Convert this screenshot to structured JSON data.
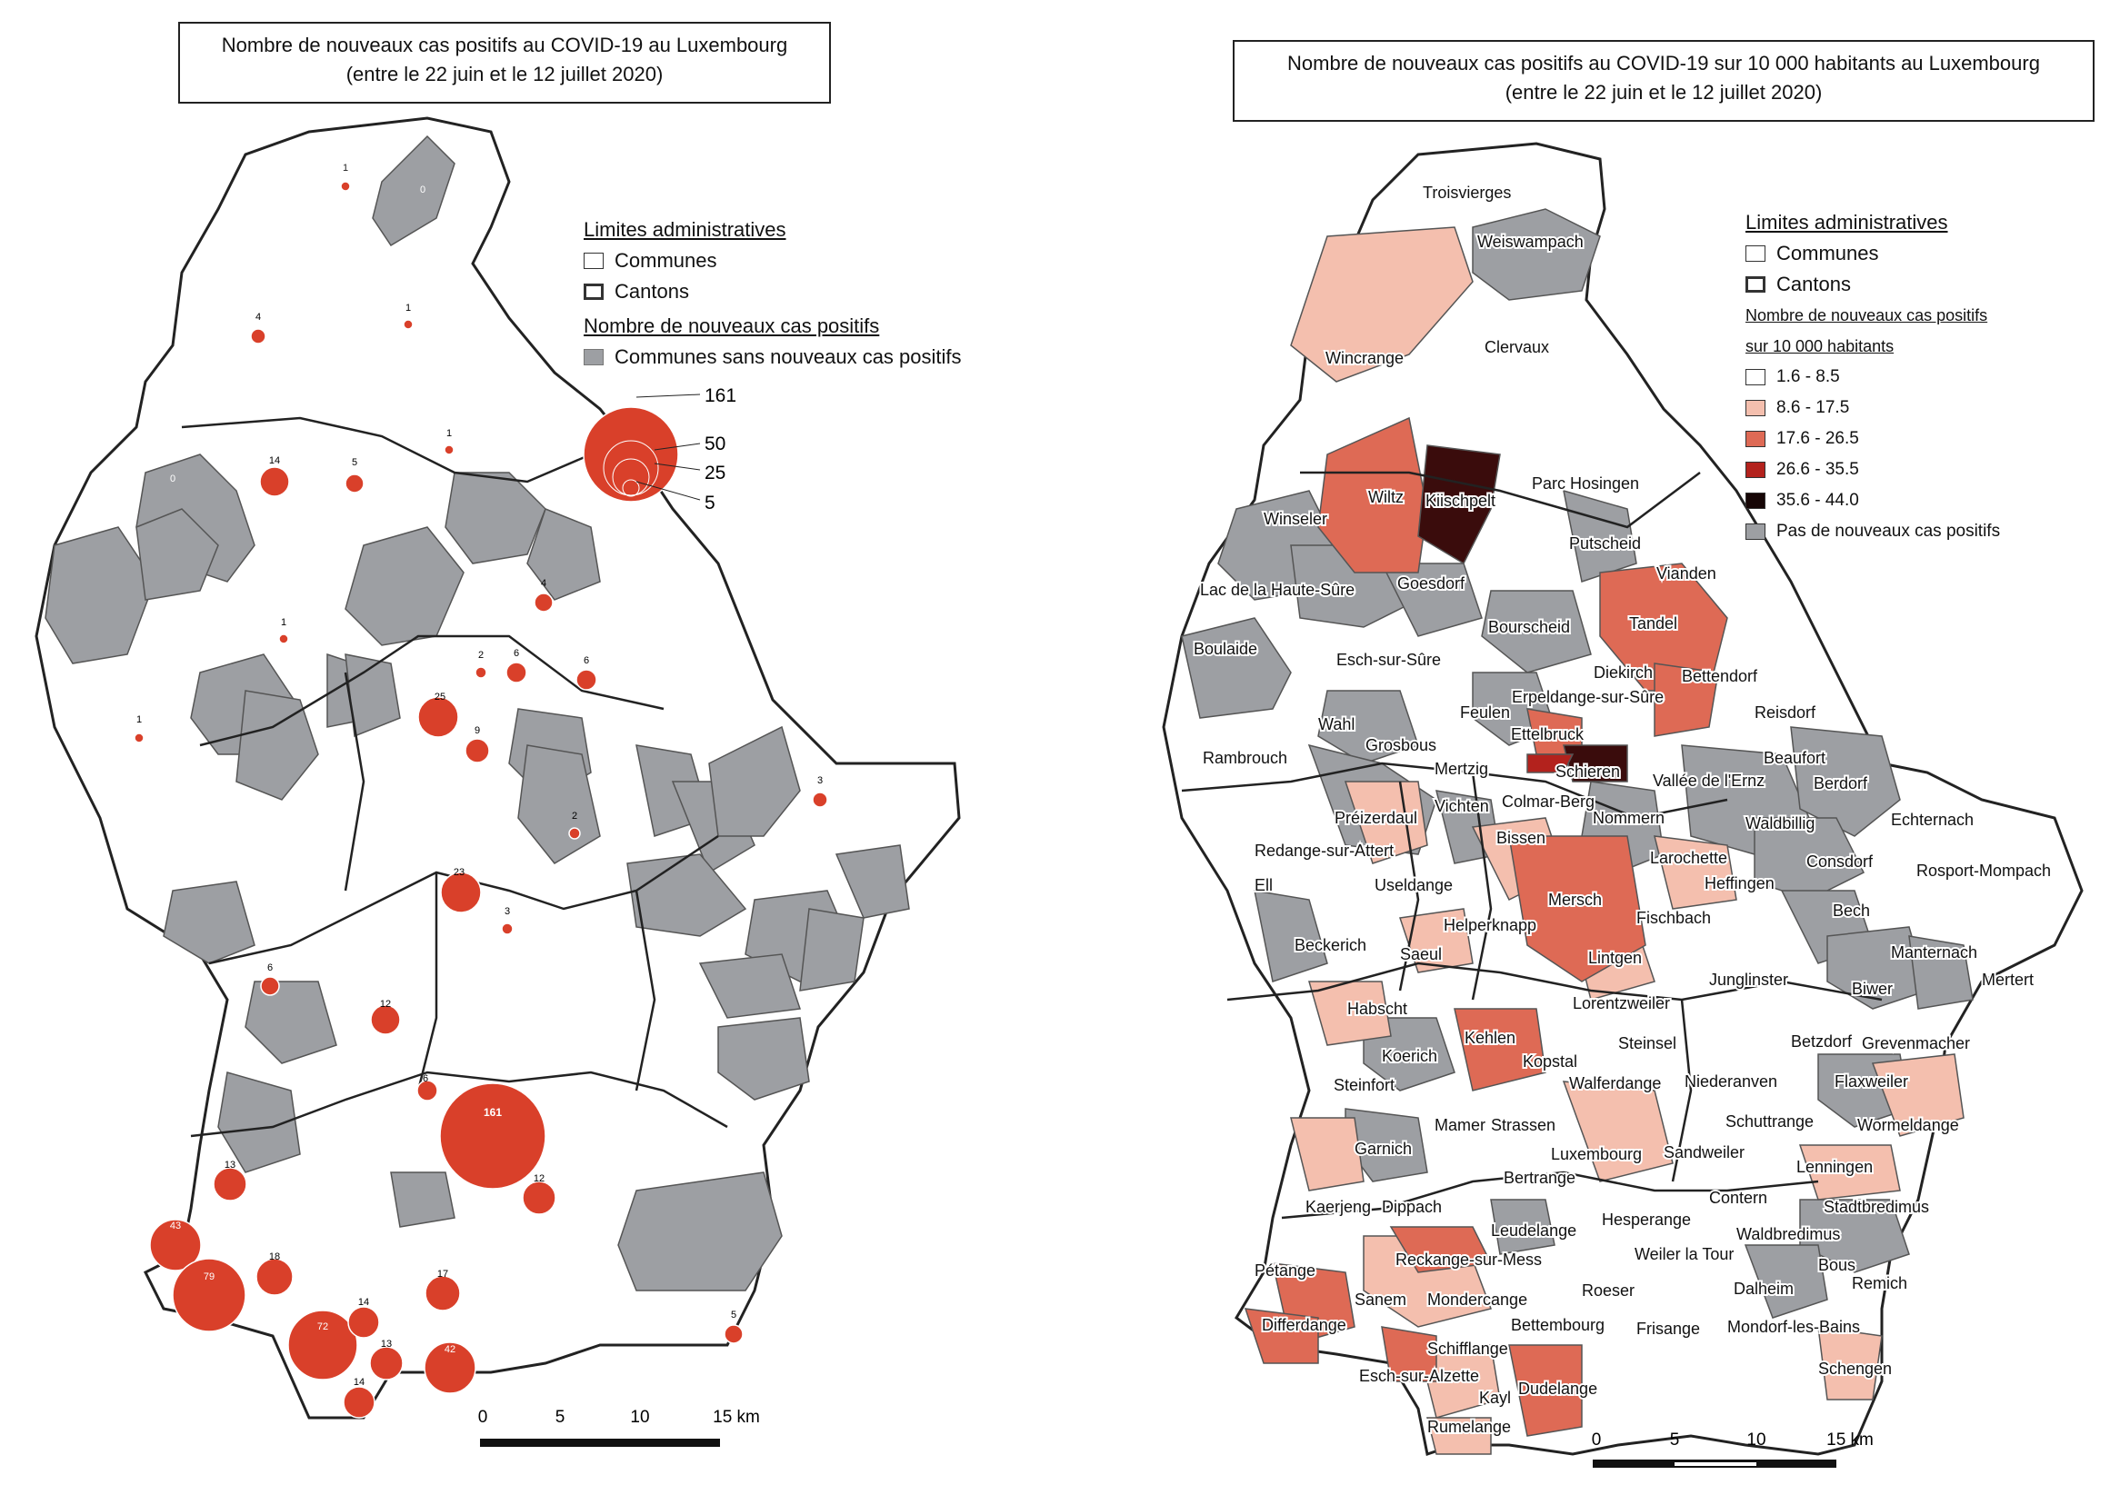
{
  "left_map": {
    "title_line1": "Nombre de nouveaux cas positifs au COVID-19 au Luxembourg",
    "title_line2": "(entre le 22 juin et le 12 juillet 2020)",
    "legend": {
      "admin_heading": "Limites administratives",
      "communes": "Communes",
      "cantons": "Cantons",
      "cases_heading": "Nombre de nouveaux cas positifs",
      "no_cases": "Communes sans nouveaux cas positifs",
      "circle_values": [
        "161",
        "50",
        "25",
        "5"
      ]
    },
    "bubbles": [
      {
        "label": "1",
        "v": 1
      },
      {
        "label": "0",
        "v": 0
      },
      {
        "label": "4",
        "v": 4
      },
      {
        "label": "1",
        "v": 1
      },
      {
        "label": "14",
        "v": 14
      },
      {
        "label": "5",
        "v": 5
      },
      {
        "label": "1",
        "v": 1
      },
      {
        "label": "0",
        "v": 0
      },
      {
        "label": "4",
        "v": 4
      },
      {
        "label": "25",
        "v": 25
      },
      {
        "label": "6",
        "v": 6
      },
      {
        "label": "6",
        "v": 6
      },
      {
        "label": "2",
        "v": 2
      },
      {
        "label": "9",
        "v": 9
      },
      {
        "label": "1",
        "v": 1
      },
      {
        "label": "1",
        "v": 1
      },
      {
        "label": "23",
        "v": 23
      },
      {
        "label": "3",
        "v": 3
      },
      {
        "label": "3",
        "v": 3
      },
      {
        "label": "2",
        "v": 2
      },
      {
        "label": "12",
        "v": 12
      },
      {
        "label": "6",
        "v": 6
      },
      {
        "label": "161",
        "v": 161
      },
      {
        "label": "12",
        "v": 12
      },
      {
        "label": "13",
        "v": 13
      },
      {
        "label": "43",
        "v": 43
      },
      {
        "label": "79",
        "v": 79
      },
      {
        "label": "18",
        "v": 18
      },
      {
        "label": "72",
        "v": 72
      },
      {
        "label": "14",
        "v": 14
      },
      {
        "label": "13",
        "v": 13
      },
      {
        "label": "42",
        "v": 42
      },
      {
        "label": "17",
        "v": 17
      },
      {
        "label": "14",
        "v": 14
      },
      {
        "label": "5",
        "v": 5
      },
      {
        "label": "6",
        "v": 6
      }
    ],
    "scale": {
      "ticks": [
        "0",
        "5",
        "10",
        "15 km"
      ]
    }
  },
  "right_map": {
    "title_line1": "Nombre de nouveaux cas positifs au COVID-19 sur 10 000 habitants au Luxembourg",
    "title_line2": "(entre le 22 juin et le 12 juillet 2020)",
    "legend": {
      "admin_heading": "Limites administratives",
      "communes": "Communes",
      "cantons": "Cantons",
      "rate_heading_1": "Nombre de nouveaux cas positifs",
      "rate_heading_2": "sur 10 000 habitants",
      "classes": [
        {
          "label": "1.6 - 8.5",
          "color": "#ffffff"
        },
        {
          "label": "8.6 - 17.5",
          "color": "#f4bfae"
        },
        {
          "label": "17.6 - 26.5",
          "color": "#de6a55"
        },
        {
          "label": "26.6 - 35.5",
          "color": "#b3221d"
        },
        {
          "label": "35.6 - 44.0",
          "color": "#160606"
        },
        {
          "label": "Pas de nouveaux cas positifs",
          "color": "#9d9fa3"
        }
      ]
    },
    "commune_labels": [
      "Troisvierges",
      "Weiswampach",
      "Wincrange",
      "Clervaux",
      "Parc Hosingen",
      "Wiltz",
      "Kiischpelt",
      "Winseler",
      "Putscheid",
      "Vianden",
      "Lac de la Haute-Sûre",
      "Goesdorf",
      "Tandel",
      "Bourscheid",
      "Boulaide",
      "Esch-sur-Sûre",
      "Diekirch",
      "Bettendorf",
      "Erpeldange-sur-Sûre",
      "Feulen",
      "Reisdorf",
      "Wahl",
      "Ettelbruck",
      "Grosbous",
      "Beaufort",
      "Rambrouch",
      "Mertzig",
      "Schieren",
      "Vallée de l'Ernz",
      "Berdorf",
      "Vichten",
      "Colmar-Berg",
      "Préizerdaul",
      "Nommern",
      "Waldbillig",
      "Echternach",
      "Redange-sur-Attert",
      "Bissen",
      "Larochette",
      "Consdorf",
      "Rosport-Mompach",
      "Ell",
      "Useldange",
      "Heffingen",
      "Mersch",
      "Helperknapp",
      "Fischbach",
      "Bech",
      "Beckerich",
      "Saeul",
      "Lintgen",
      "Junglinster",
      "Manternach",
      "Mertert",
      "Habscht",
      "Lorentzweiler",
      "Biwer",
      "Kehlen",
      "Steinsel",
      "Betzdorf",
      "Grevenmacher",
      "Koerich",
      "Kopstal",
      "Walferdange",
      "Niederanven",
      "Flaxweiler",
      "Steinfort",
      "Mamer",
      "Strassen",
      "Schuttrange",
      "Wormeldange",
      "Garnich",
      "Luxembourg",
      "Sandweiler",
      "Lenningen",
      "Bertrange",
      "Kaerjeng",
      "Dippach",
      "Contern",
      "Stadtbredimus",
      "Leudelange",
      "Hesperange",
      "Waldbredimus",
      "Pétange",
      "Reckange-sur-Mess",
      "Weiler la Tour",
      "Bous",
      "Remich",
      "Sanem",
      "Mondercange",
      "Roeser",
      "Dalheim",
      "Differdange",
      "Bettembourg",
      "Frisange",
      "Mondorf-les-Bains",
      "Schifflange",
      "Esch-sur-Alzette",
      "Schengen",
      "Kayl",
      "Dudelange",
      "Rumelange"
    ],
    "scale": {
      "ticks": [
        "0",
        "5",
        "10",
        "15 km"
      ]
    }
  }
}
